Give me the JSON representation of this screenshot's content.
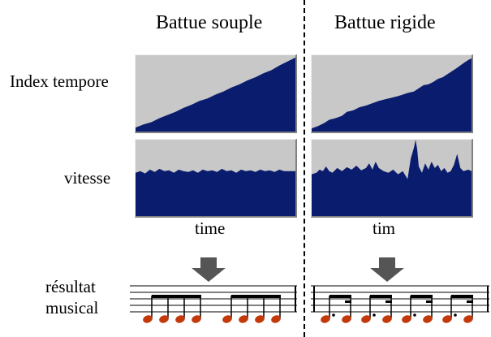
{
  "columns": [
    {
      "title": "Battue souple"
    },
    {
      "title": "Battue rigide"
    }
  ],
  "rows": {
    "index": "Index tempore",
    "speed": "vitesse",
    "result_line1": "résultat",
    "result_line2": "musical"
  },
  "axis": {
    "left": "time",
    "right": "tim"
  },
  "colors": {
    "panel_background": "#c8c8c8",
    "plot_fill": "#0a1c6e",
    "arrow": "#555555"
  }
}
